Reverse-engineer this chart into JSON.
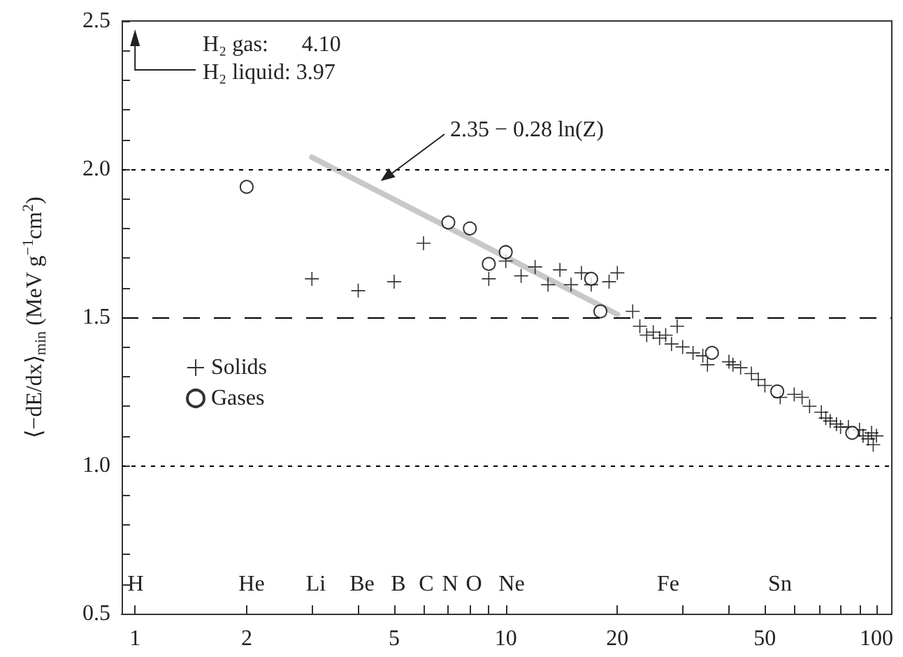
{
  "chart_data": {
    "type": "scatter",
    "xlabel": null,
    "ylabel": "⟨−dE/dx⟩$_{min}$ (MeV g$^{−1}$cm$^{2}$)",
    "log": "x",
    "grid": false,
    "legend": "left",
    "xlim": [
      0.92,
      110
    ],
    "xticks": [
      1,
      2,
      {
        "value": 3,
        "label": null
      },
      {
        "value": 4,
        "label": null
      },
      5,
      {
        "value": 6,
        "label": null
      },
      {
        "value": 7,
        "label": null
      },
      {
        "value": 8,
        "label": null
      },
      {
        "value": 9,
        "label": null
      },
      10,
      20,
      {
        "value": 30,
        "label": null
      },
      {
        "value": 40,
        "label": null
      },
      50,
      {
        "value": 60,
        "label": null
      },
      {
        "value": 70,
        "label": null
      },
      {
        "value": 80,
        "label": null
      },
      {
        "value": 90,
        "label": null
      },
      100
    ],
    "ylim": [
      0.5,
      2.5
    ],
    "yticks": [
      {
        "value": 0.5,
        "label": "0.5"
      },
      {
        "value": 0.6,
        "label": null
      },
      {
        "value": 0.7,
        "label": null
      },
      {
        "value": 0.8,
        "label": null
      },
      {
        "value": 0.9,
        "label": null
      },
      {
        "value": 1.0,
        "label": "1.0"
      },
      {
        "value": 1.1,
        "label": null
      },
      {
        "value": 1.2,
        "label": null
      },
      {
        "value": 1.3,
        "label": null
      },
      {
        "value": 1.4,
        "label": null
      },
      {
        "value": 1.5,
        "label": "1.5"
      },
      {
        "value": 1.6,
        "label": null
      },
      {
        "value": 1.7,
        "label": null
      },
      {
        "value": 1.8,
        "label": null
      },
      {
        "value": 1.9,
        "label": null
      },
      {
        "value": 2.0,
        "label": "2.0"
      },
      {
        "value": 2.1,
        "label": null
      },
      {
        "value": 2.2,
        "label": null
      },
      {
        "value": 2.3,
        "label": null
      },
      {
        "value": 2.4,
        "label": null
      },
      {
        "value": 2.5,
        "label": "2.5"
      }
    ],
    "series": [
      {
        "name": "2.35 − 0.28 ln(Z)",
        "type": "line",
        "color": "#c8c8c8",
        "marker": "none",
        "x": [
          3,
          20
        ],
        "values": [
          2.04,
          1.51
        ]
      },
      {
        "name": "Solids",
        "color": "#000000",
        "marker": "cross",
        "x": [
          3,
          4,
          5,
          6,
          9,
          10,
          11,
          12,
          13,
          14,
          15,
          16,
          17,
          19,
          20,
          22,
          23,
          24,
          25,
          26,
          27,
          28,
          29,
          30,
          32,
          34,
          35,
          40,
          41,
          43,
          46,
          48,
          50,
          55,
          60,
          63,
          66,
          71,
          73,
          75,
          78,
          80,
          84,
          90,
          92,
          95,
          97,
          98,
          100
        ],
        "values": [
          1.63,
          1.59,
          1.62,
          1.75,
          1.63,
          1.69,
          1.64,
          1.67,
          1.61,
          1.66,
          1.61,
          1.65,
          1.61,
          1.62,
          1.65,
          1.52,
          1.47,
          1.44,
          1.45,
          1.43,
          1.44,
          1.41,
          1.47,
          1.4,
          1.38,
          1.37,
          1.34,
          1.35,
          1.34,
          1.33,
          1.31,
          1.29,
          1.27,
          1.23,
          1.24,
          1.23,
          1.2,
          1.18,
          1.16,
          1.15,
          1.14,
          1.13,
          1.13,
          1.12,
          1.1,
          1.09,
          1.11,
          1.07,
          1.1
        ]
      },
      {
        "name": "Gases",
        "color": "#000000",
        "marker": "circle",
        "x": [
          2,
          7,
          8,
          9,
          10,
          17,
          18,
          36,
          54,
          86
        ],
        "values": [
          1.94,
          1.82,
          1.8,
          1.68,
          1.72,
          1.63,
          1.52,
          1.38,
          1.25,
          1.11
        ]
      }
    ],
    "ref_lines": [
      {
        "axis": "y",
        "value": 2.0,
        "line_style": "dotted",
        "color": "#000000"
      },
      {
        "axis": "y",
        "value": 1.5,
        "line_style": "dashed",
        "color": "#000000"
      },
      {
        "axis": "y",
        "value": 1.0,
        "line_style": "dotted",
        "color": "#000000"
      }
    ],
    "annotations": [
      "H₂ gas:      4.10",
      "H₂ liquid: 3.97",
      "H",
      "He",
      "Li",
      "Be",
      "B",
      "C",
      "N",
      "O",
      "Ne",
      "Fe",
      "Sn"
    ]
  }
}
